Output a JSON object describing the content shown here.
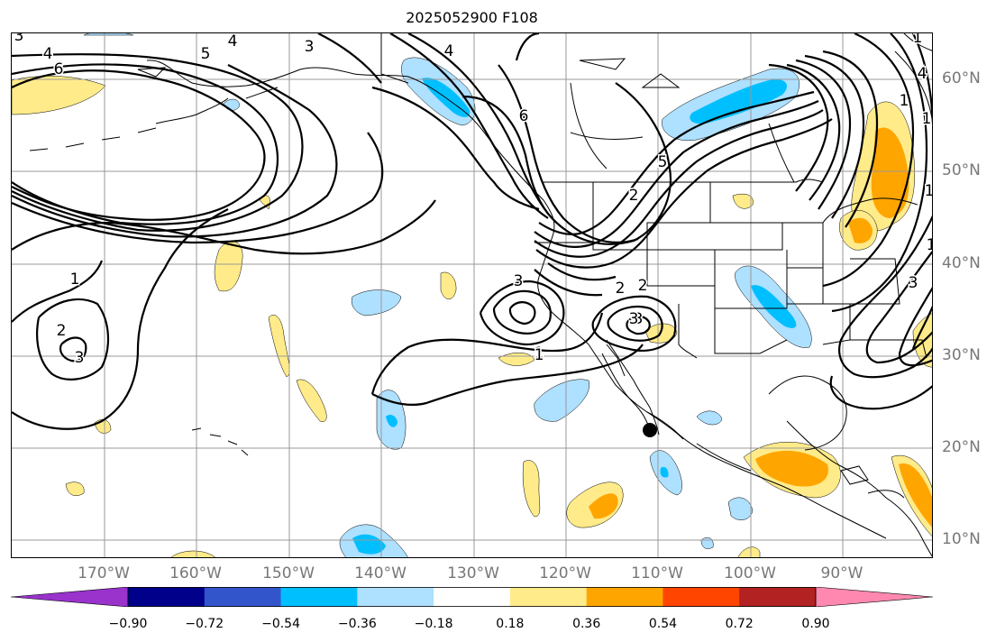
{
  "title": "2025052900 F108",
  "lon_labels": [
    "170°W",
    "160°W",
    "150°W",
    "140°W",
    "130°W",
    "120°W",
    "110°W",
    "100°W",
    "90°W"
  ],
  "lat_labels": [
    "60°N",
    "50°N",
    "40°N",
    "30°N",
    "20°N",
    "10°N"
  ],
  "colorbar": {
    "ticks": [
      "−0.90",
      "−0.72",
      "−0.54",
      "−0.36",
      "−0.18",
      "0.18",
      "0.36",
      "0.54",
      "0.72",
      "0.90"
    ],
    "colors": [
      "#9933cc",
      "#00008b",
      "#3355cc",
      "#00bfff",
      "#aee0ff",
      "#ffffff",
      "#ffeb8a",
      "#ffa500",
      "#ff4500",
      "#b22222",
      "#ff88b0"
    ]
  },
  "contour_labels": [
    "3",
    "4",
    "4",
    "5",
    "6",
    "6",
    "5",
    "4",
    "3",
    "3",
    "2",
    "1",
    "1",
    "2",
    "3",
    "3",
    "2",
    "3",
    "1",
    "2",
    "3",
    "4",
    "1",
    "1",
    "1",
    "1",
    "1"
  ],
  "marker": "storm-center"
}
